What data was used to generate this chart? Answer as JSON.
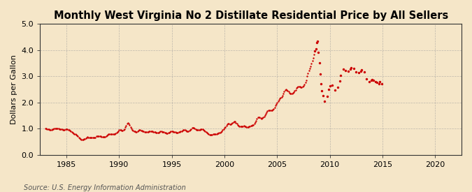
{
  "title": "Monthly West Virginia No 2 Distillate Residential Price by All Sellers",
  "ylabel": "Dollars per Gallon",
  "source": "Source: U.S. Energy Information Administration",
  "ylim": [
    0.0,
    5.0
  ],
  "xlim": [
    1982.5,
    2022.5
  ],
  "yticks": [
    0.0,
    1.0,
    2.0,
    3.0,
    4.0,
    5.0
  ],
  "xticks": [
    1985,
    1990,
    1995,
    2000,
    2005,
    2010,
    2015,
    2020
  ],
  "background_color": "#f5e6c8",
  "plot_bg_color": "#f5e6c8",
  "dot_color": "#cc0000",
  "grid_color": "#999999",
  "title_fontsize": 10.5,
  "label_fontsize": 8,
  "tick_fontsize": 8,
  "source_fontsize": 7,
  "data": [
    [
      1983.0,
      1.01
    ],
    [
      1983.08,
      1.0
    ],
    [
      1983.17,
      0.99
    ],
    [
      1983.25,
      0.99
    ],
    [
      1983.33,
      0.97
    ],
    [
      1983.42,
      0.96
    ],
    [
      1983.5,
      0.96
    ],
    [
      1983.58,
      0.96
    ],
    [
      1983.67,
      0.97
    ],
    [
      1983.75,
      0.98
    ],
    [
      1983.83,
      1.0
    ],
    [
      1983.92,
      1.01
    ],
    [
      1984.0,
      1.01
    ],
    [
      1984.08,
      1.01
    ],
    [
      1984.17,
      1.0
    ],
    [
      1984.25,
      1.0
    ],
    [
      1984.33,
      0.99
    ],
    [
      1984.42,
      0.98
    ],
    [
      1984.5,
      0.97
    ],
    [
      1984.58,
      0.97
    ],
    [
      1984.67,
      0.96
    ],
    [
      1984.75,
      0.95
    ],
    [
      1984.83,
      0.96
    ],
    [
      1984.92,
      0.97
    ],
    [
      1985.0,
      0.97
    ],
    [
      1985.08,
      0.97
    ],
    [
      1985.17,
      0.96
    ],
    [
      1985.25,
      0.95
    ],
    [
      1985.33,
      0.93
    ],
    [
      1985.42,
      0.9
    ],
    [
      1985.5,
      0.87
    ],
    [
      1985.58,
      0.85
    ],
    [
      1985.67,
      0.83
    ],
    [
      1985.75,
      0.8
    ],
    [
      1985.83,
      0.78
    ],
    [
      1985.92,
      0.76
    ],
    [
      1986.0,
      0.74
    ],
    [
      1986.08,
      0.7
    ],
    [
      1986.17,
      0.66
    ],
    [
      1986.25,
      0.62
    ],
    [
      1986.33,
      0.6
    ],
    [
      1986.42,
      0.59
    ],
    [
      1986.5,
      0.59
    ],
    [
      1986.58,
      0.59
    ],
    [
      1986.67,
      0.6
    ],
    [
      1986.75,
      0.61
    ],
    [
      1986.83,
      0.64
    ],
    [
      1986.92,
      0.67
    ],
    [
      1987.0,
      0.68
    ],
    [
      1987.08,
      0.67
    ],
    [
      1987.17,
      0.67
    ],
    [
      1987.25,
      0.66
    ],
    [
      1987.33,
      0.65
    ],
    [
      1987.42,
      0.65
    ],
    [
      1987.5,
      0.65
    ],
    [
      1987.58,
      0.65
    ],
    [
      1987.67,
      0.66
    ],
    [
      1987.75,
      0.67
    ],
    [
      1987.83,
      0.7
    ],
    [
      1987.92,
      0.72
    ],
    [
      1988.0,
      0.72
    ],
    [
      1988.08,
      0.71
    ],
    [
      1988.17,
      0.7
    ],
    [
      1988.25,
      0.7
    ],
    [
      1988.33,
      0.69
    ],
    [
      1988.42,
      0.68
    ],
    [
      1988.5,
      0.68
    ],
    [
      1988.58,
      0.68
    ],
    [
      1988.67,
      0.69
    ],
    [
      1988.75,
      0.7
    ],
    [
      1988.83,
      0.73
    ],
    [
      1988.92,
      0.76
    ],
    [
      1989.0,
      0.79
    ],
    [
      1989.08,
      0.8
    ],
    [
      1989.17,
      0.8
    ],
    [
      1989.25,
      0.79
    ],
    [
      1989.33,
      0.78
    ],
    [
      1989.42,
      0.78
    ],
    [
      1989.5,
      0.78
    ],
    [
      1989.58,
      0.79
    ],
    [
      1989.67,
      0.81
    ],
    [
      1989.75,
      0.84
    ],
    [
      1989.83,
      0.88
    ],
    [
      1989.92,
      0.91
    ],
    [
      1990.0,
      0.95
    ],
    [
      1990.08,
      0.96
    ],
    [
      1990.17,
      0.95
    ],
    [
      1990.25,
      0.93
    ],
    [
      1990.33,
      0.93
    ],
    [
      1990.42,
      0.94
    ],
    [
      1990.5,
      0.98
    ],
    [
      1990.58,
      1.05
    ],
    [
      1990.67,
      1.12
    ],
    [
      1990.75,
      1.18
    ],
    [
      1990.83,
      1.22
    ],
    [
      1990.92,
      1.2
    ],
    [
      1991.0,
      1.15
    ],
    [
      1991.08,
      1.07
    ],
    [
      1991.17,
      1.0
    ],
    [
      1991.25,
      0.96
    ],
    [
      1991.33,
      0.93
    ],
    [
      1991.42,
      0.9
    ],
    [
      1991.5,
      0.89
    ],
    [
      1991.58,
      0.88
    ],
    [
      1991.67,
      0.88
    ],
    [
      1991.75,
      0.89
    ],
    [
      1991.83,
      0.92
    ],
    [
      1991.92,
      0.94
    ],
    [
      1992.0,
      0.94
    ],
    [
      1992.08,
      0.93
    ],
    [
      1992.17,
      0.92
    ],
    [
      1992.25,
      0.9
    ],
    [
      1992.33,
      0.89
    ],
    [
      1992.42,
      0.88
    ],
    [
      1992.5,
      0.87
    ],
    [
      1992.58,
      0.86
    ],
    [
      1992.67,
      0.86
    ],
    [
      1992.75,
      0.87
    ],
    [
      1992.83,
      0.89
    ],
    [
      1992.92,
      0.91
    ],
    [
      1993.0,
      0.91
    ],
    [
      1993.08,
      0.9
    ],
    [
      1993.17,
      0.89
    ],
    [
      1993.25,
      0.88
    ],
    [
      1993.33,
      0.87
    ],
    [
      1993.42,
      0.86
    ],
    [
      1993.5,
      0.85
    ],
    [
      1993.58,
      0.84
    ],
    [
      1993.67,
      0.84
    ],
    [
      1993.75,
      0.85
    ],
    [
      1993.83,
      0.87
    ],
    [
      1993.92,
      0.89
    ],
    [
      1994.0,
      0.89
    ],
    [
      1994.08,
      0.88
    ],
    [
      1994.17,
      0.87
    ],
    [
      1994.25,
      0.86
    ],
    [
      1994.33,
      0.85
    ],
    [
      1994.42,
      0.84
    ],
    [
      1994.5,
      0.83
    ],
    [
      1994.58,
      0.83
    ],
    [
      1994.67,
      0.84
    ],
    [
      1994.75,
      0.85
    ],
    [
      1994.83,
      0.87
    ],
    [
      1994.92,
      0.89
    ],
    [
      1995.0,
      0.9
    ],
    [
      1995.08,
      0.89
    ],
    [
      1995.17,
      0.88
    ],
    [
      1995.25,
      0.87
    ],
    [
      1995.33,
      0.86
    ],
    [
      1995.42,
      0.85
    ],
    [
      1995.5,
      0.85
    ],
    [
      1995.58,
      0.85
    ],
    [
      1995.67,
      0.86
    ],
    [
      1995.75,
      0.87
    ],
    [
      1995.83,
      0.89
    ],
    [
      1995.92,
      0.91
    ],
    [
      1996.0,
      0.93
    ],
    [
      1996.08,
      0.95
    ],
    [
      1996.17,
      0.96
    ],
    [
      1996.25,
      0.95
    ],
    [
      1996.33,
      0.93
    ],
    [
      1996.42,
      0.91
    ],
    [
      1996.5,
      0.9
    ],
    [
      1996.58,
      0.9
    ],
    [
      1996.67,
      0.92
    ],
    [
      1996.75,
      0.95
    ],
    [
      1996.83,
      0.99
    ],
    [
      1996.92,
      1.02
    ],
    [
      1997.0,
      1.03
    ],
    [
      1997.08,
      1.02
    ],
    [
      1997.17,
      1.0
    ],
    [
      1997.25,
      0.98
    ],
    [
      1997.33,
      0.96
    ],
    [
      1997.42,
      0.95
    ],
    [
      1997.5,
      0.95
    ],
    [
      1997.58,
      0.95
    ],
    [
      1997.67,
      0.96
    ],
    [
      1997.75,
      0.97
    ],
    [
      1997.83,
      0.98
    ],
    [
      1997.92,
      0.98
    ],
    [
      1998.0,
      0.96
    ],
    [
      1998.08,
      0.93
    ],
    [
      1998.17,
      0.9
    ],
    [
      1998.25,
      0.87
    ],
    [
      1998.33,
      0.84
    ],
    [
      1998.42,
      0.81
    ],
    [
      1998.5,
      0.79
    ],
    [
      1998.58,
      0.77
    ],
    [
      1998.67,
      0.76
    ],
    [
      1998.75,
      0.76
    ],
    [
      1998.83,
      0.77
    ],
    [
      1998.92,
      0.78
    ],
    [
      1999.0,
      0.79
    ],
    [
      1999.08,
      0.79
    ],
    [
      1999.17,
      0.79
    ],
    [
      1999.25,
      0.8
    ],
    [
      1999.33,
      0.81
    ],
    [
      1999.42,
      0.82
    ],
    [
      1999.5,
      0.84
    ],
    [
      1999.58,
      0.85
    ],
    [
      1999.67,
      0.87
    ],
    [
      1999.75,
      0.9
    ],
    [
      1999.83,
      0.94
    ],
    [
      1999.92,
      0.98
    ],
    [
      2000.0,
      1.02
    ],
    [
      2000.08,
      1.07
    ],
    [
      2000.17,
      1.12
    ],
    [
      2000.25,
      1.16
    ],
    [
      2000.33,
      1.18
    ],
    [
      2000.42,
      1.18
    ],
    [
      2000.5,
      1.17
    ],
    [
      2000.58,
      1.17
    ],
    [
      2000.67,
      1.18
    ],
    [
      2000.75,
      1.21
    ],
    [
      2000.83,
      1.25
    ],
    [
      2000.92,
      1.27
    ],
    [
      2001.0,
      1.27
    ],
    [
      2001.08,
      1.23
    ],
    [
      2001.17,
      1.18
    ],
    [
      2001.25,
      1.14
    ],
    [
      2001.33,
      1.11
    ],
    [
      2001.42,
      1.09
    ],
    [
      2001.5,
      1.08
    ],
    [
      2001.58,
      1.08
    ],
    [
      2001.67,
      1.08
    ],
    [
      2001.75,
      1.09
    ],
    [
      2001.83,
      1.1
    ],
    [
      2001.92,
      1.09
    ],
    [
      2002.0,
      1.08
    ],
    [
      2002.08,
      1.07
    ],
    [
      2002.17,
      1.07
    ],
    [
      2002.25,
      1.07
    ],
    [
      2002.33,
      1.08
    ],
    [
      2002.42,
      1.09
    ],
    [
      2002.5,
      1.1
    ],
    [
      2002.58,
      1.11
    ],
    [
      2002.67,
      1.13
    ],
    [
      2002.75,
      1.15
    ],
    [
      2002.83,
      1.19
    ],
    [
      2002.92,
      1.24
    ],
    [
      2003.0,
      1.31
    ],
    [
      2003.08,
      1.38
    ],
    [
      2003.17,
      1.43
    ],
    [
      2003.25,
      1.44
    ],
    [
      2003.33,
      1.42
    ],
    [
      2003.42,
      1.4
    ],
    [
      2003.5,
      1.39
    ],
    [
      2003.58,
      1.4
    ],
    [
      2003.67,
      1.42
    ],
    [
      2003.75,
      1.46
    ],
    [
      2003.83,
      1.51
    ],
    [
      2003.92,
      1.56
    ],
    [
      2004.0,
      1.61
    ],
    [
      2004.08,
      1.66
    ],
    [
      2004.17,
      1.69
    ],
    [
      2004.25,
      1.7
    ],
    [
      2004.33,
      1.7
    ],
    [
      2004.42,
      1.7
    ],
    [
      2004.5,
      1.71
    ],
    [
      2004.58,
      1.73
    ],
    [
      2004.67,
      1.76
    ],
    [
      2004.75,
      1.81
    ],
    [
      2004.83,
      1.87
    ],
    [
      2004.92,
      1.93
    ],
    [
      2005.0,
      1.99
    ],
    [
      2005.08,
      2.05
    ],
    [
      2005.17,
      2.1
    ],
    [
      2005.25,
      2.14
    ],
    [
      2005.33,
      2.17
    ],
    [
      2005.42,
      2.21
    ],
    [
      2005.5,
      2.26
    ],
    [
      2005.58,
      2.33
    ],
    [
      2005.67,
      2.41
    ],
    [
      2005.75,
      2.47
    ],
    [
      2005.83,
      2.5
    ],
    [
      2005.92,
      2.48
    ],
    [
      2006.0,
      2.45
    ],
    [
      2006.08,
      2.41
    ],
    [
      2006.17,
      2.37
    ],
    [
      2006.25,
      2.34
    ],
    [
      2006.33,
      2.33
    ],
    [
      2006.42,
      2.33
    ],
    [
      2006.5,
      2.35
    ],
    [
      2006.58,
      2.38
    ],
    [
      2006.67,
      2.43
    ],
    [
      2006.75,
      2.48
    ],
    [
      2006.83,
      2.54
    ],
    [
      2006.92,
      2.58
    ],
    [
      2007.0,
      2.6
    ],
    [
      2007.08,
      2.6
    ],
    [
      2007.17,
      2.59
    ],
    [
      2007.25,
      2.58
    ],
    [
      2007.33,
      2.58
    ],
    [
      2007.42,
      2.6
    ],
    [
      2007.5,
      2.63
    ],
    [
      2007.58,
      2.68
    ],
    [
      2007.67,
      2.75
    ],
    [
      2007.75,
      2.85
    ],
    [
      2007.83,
      2.99
    ],
    [
      2007.92,
      3.12
    ],
    [
      2008.0,
      3.22
    ],
    [
      2008.08,
      3.3
    ],
    [
      2008.17,
      3.38
    ],
    [
      2008.25,
      3.47
    ],
    [
      2008.33,
      3.58
    ],
    [
      2008.42,
      3.7
    ],
    [
      2008.5,
      3.83
    ],
    [
      2008.58,
      3.95
    ],
    [
      2008.67,
      4.05
    ],
    [
      2008.75,
      4.28
    ],
    [
      2008.83,
      4.32
    ],
    [
      2008.92,
      3.92
    ],
    [
      2009.0,
      3.52
    ],
    [
      2009.08,
      3.08
    ],
    [
      2009.17,
      2.72
    ],
    [
      2009.25,
      2.45
    ],
    [
      2009.33,
      2.25
    ],
    [
      2009.5,
      2.05
    ],
    [
      2009.75,
      2.22
    ],
    [
      2009.92,
      2.5
    ],
    [
      2010.0,
      2.62
    ],
    [
      2010.25,
      2.65
    ],
    [
      2010.5,
      2.47
    ],
    [
      2010.75,
      2.58
    ],
    [
      2010.92,
      2.82
    ],
    [
      2011.0,
      3.02
    ],
    [
      2011.25,
      3.28
    ],
    [
      2011.5,
      3.22
    ],
    [
      2011.75,
      3.18
    ],
    [
      2011.92,
      3.26
    ],
    [
      2012.0,
      3.32
    ],
    [
      2012.25,
      3.3
    ],
    [
      2012.5,
      3.16
    ],
    [
      2012.75,
      3.14
    ],
    [
      2012.92,
      3.2
    ],
    [
      2013.0,
      3.24
    ],
    [
      2013.25,
      3.15
    ],
    [
      2013.5,
      2.9
    ],
    [
      2013.75,
      2.79
    ],
    [
      2013.92,
      2.83
    ],
    [
      2014.0,
      2.88
    ],
    [
      2014.17,
      2.85
    ],
    [
      2014.33,
      2.8
    ],
    [
      2014.5,
      2.75
    ],
    [
      2014.67,
      2.72
    ],
    [
      2014.75,
      2.8
    ],
    [
      2014.92,
      2.72
    ]
  ]
}
